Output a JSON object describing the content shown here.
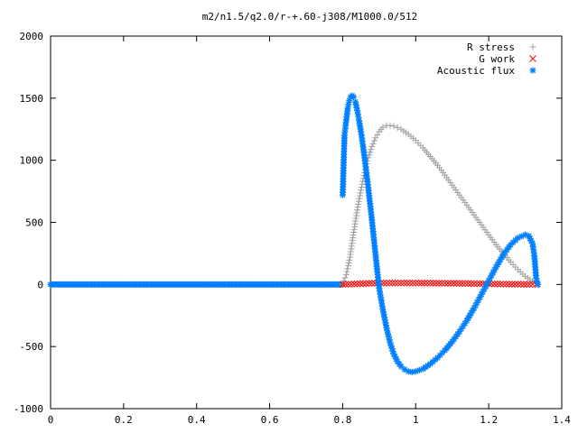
{
  "chart_data": {
    "type": "scatter",
    "title": "m2/n1.5/q2.0/r-+.60-j308/M1000.0/512",
    "xlabel": "",
    "ylabel": "",
    "xlim": [
      0,
      1.4
    ],
    "ylim": [
      -1000,
      2000
    ],
    "x_ticks": [
      "0",
      "0.2",
      "0.4",
      "0.6",
      "0.8",
      "1",
      "1.2",
      "1.4"
    ],
    "y_ticks": [
      "2000",
      "1500",
      "1000",
      "500",
      "0",
      "-500",
      "-1000"
    ],
    "grid": false,
    "legend_position": "top-right",
    "series": [
      {
        "name": "R stress",
        "marker": "plus",
        "color": "#a0a0a0",
        "points": [
          [
            0.8,
            0
          ],
          [
            0.81,
            80
          ],
          [
            0.82,
            220
          ],
          [
            0.83,
            420
          ],
          [
            0.84,
            600
          ],
          [
            0.85,
            760
          ],
          [
            0.86,
            900
          ],
          [
            0.87,
            1020
          ],
          [
            0.88,
            1110
          ],
          [
            0.89,
            1180
          ],
          [
            0.9,
            1230
          ],
          [
            0.91,
            1265
          ],
          [
            0.92,
            1280
          ],
          [
            0.93,
            1280
          ],
          [
            0.94,
            1275
          ],
          [
            0.96,
            1250
          ],
          [
            0.98,
            1210
          ],
          [
            1.0,
            1160
          ],
          [
            1.02,
            1100
          ],
          [
            1.04,
            1030
          ],
          [
            1.06,
            960
          ],
          [
            1.08,
            880
          ],
          [
            1.1,
            800
          ],
          [
            1.12,
            720
          ],
          [
            1.14,
            640
          ],
          [
            1.16,
            560
          ],
          [
            1.18,
            480
          ],
          [
            1.2,
            400
          ],
          [
            1.22,
            320
          ],
          [
            1.24,
            250
          ],
          [
            1.26,
            180
          ],
          [
            1.28,
            120
          ],
          [
            1.3,
            65
          ],
          [
            1.32,
            25
          ],
          [
            1.33,
            5
          ]
        ]
      },
      {
        "name": "G work",
        "marker": "cross",
        "color": "#ff0000",
        "points": [
          [
            0.8,
            0
          ],
          [
            0.84,
            5
          ],
          [
            0.88,
            10
          ],
          [
            0.92,
            12
          ],
          [
            0.96,
            12
          ],
          [
            1.0,
            12
          ],
          [
            1.04,
            11
          ],
          [
            1.08,
            10
          ],
          [
            1.12,
            9
          ],
          [
            1.16,
            7
          ],
          [
            1.2,
            5
          ],
          [
            1.24,
            3
          ],
          [
            1.28,
            2
          ],
          [
            1.32,
            1
          ],
          [
            1.33,
            0
          ]
        ]
      },
      {
        "name": "Acoustic flux",
        "marker": "star",
        "color": "#0080ff",
        "points": [
          [
            0.8,
            720
          ],
          [
            0.805,
            1200
          ],
          [
            0.808,
            1280
          ],
          [
            0.811,
            1350
          ],
          [
            0.814,
            1420
          ],
          [
            0.818,
            1480
          ],
          [
            0.822,
            1510
          ],
          [
            0.826,
            1520
          ],
          [
            0.83,
            1510
          ],
          [
            0.835,
            1470
          ],
          [
            0.84,
            1400
          ],
          [
            0.845,
            1320
          ],
          [
            0.85,
            1230
          ],
          [
            0.855,
            1130
          ],
          [
            0.86,
            1020
          ],
          [
            0.865,
            900
          ],
          [
            0.87,
            780
          ],
          [
            0.875,
            650
          ],
          [
            0.88,
            520
          ],
          [
            0.885,
            380
          ],
          [
            0.89,
            240
          ],
          [
            0.895,
            100
          ],
          [
            0.9,
            -30
          ],
          [
            0.91,
            -200
          ],
          [
            0.92,
            -350
          ],
          [
            0.93,
            -470
          ],
          [
            0.94,
            -560
          ],
          [
            0.95,
            -620
          ],
          [
            0.96,
            -660
          ],
          [
            0.97,
            -685
          ],
          [
            0.98,
            -700
          ],
          [
            0.99,
            -705
          ],
          [
            1.0,
            -700
          ],
          [
            1.02,
            -680
          ],
          [
            1.04,
            -640
          ],
          [
            1.06,
            -590
          ],
          [
            1.08,
            -530
          ],
          [
            1.1,
            -460
          ],
          [
            1.12,
            -380
          ],
          [
            1.14,
            -290
          ],
          [
            1.16,
            -190
          ],
          [
            1.18,
            -80
          ],
          [
            1.2,
            30
          ],
          [
            1.22,
            140
          ],
          [
            1.24,
            240
          ],
          [
            1.26,
            320
          ],
          [
            1.28,
            375
          ],
          [
            1.3,
            400
          ],
          [
            1.31,
            390
          ],
          [
            1.32,
            330
          ],
          [
            1.325,
            230
          ],
          [
            1.33,
            50
          ],
          [
            1.335,
            0
          ]
        ]
      }
    ]
  }
}
